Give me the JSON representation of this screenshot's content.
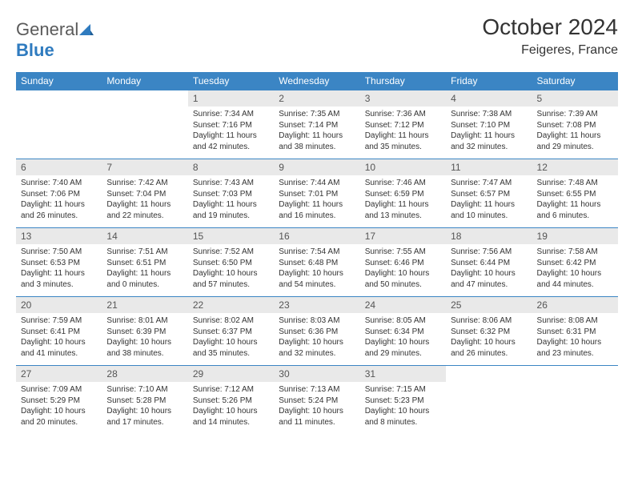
{
  "brand": {
    "name_part1": "General",
    "name_part2": "Blue"
  },
  "title": "October 2024",
  "location": "Feigeres, France",
  "colors": {
    "header_bg": "#3b85c4",
    "header_text": "#ffffff",
    "daynum_bg": "#e9e9e9",
    "rule": "#3b85c4",
    "text": "#333333",
    "logo_accent": "#2f7bbf"
  },
  "day_names": [
    "Sunday",
    "Monday",
    "Tuesday",
    "Wednesday",
    "Thursday",
    "Friday",
    "Saturday"
  ],
  "weeks": [
    [
      {
        "n": "",
        "sr": "",
        "ss": "",
        "dl": ""
      },
      {
        "n": "",
        "sr": "",
        "ss": "",
        "dl": ""
      },
      {
        "n": "1",
        "sr": "7:34 AM",
        "ss": "7:16 PM",
        "dl": "11 hours and 42 minutes."
      },
      {
        "n": "2",
        "sr": "7:35 AM",
        "ss": "7:14 PM",
        "dl": "11 hours and 38 minutes."
      },
      {
        "n": "3",
        "sr": "7:36 AM",
        "ss": "7:12 PM",
        "dl": "11 hours and 35 minutes."
      },
      {
        "n": "4",
        "sr": "7:38 AM",
        "ss": "7:10 PM",
        "dl": "11 hours and 32 minutes."
      },
      {
        "n": "5",
        "sr": "7:39 AM",
        "ss": "7:08 PM",
        "dl": "11 hours and 29 minutes."
      }
    ],
    [
      {
        "n": "6",
        "sr": "7:40 AM",
        "ss": "7:06 PM",
        "dl": "11 hours and 26 minutes."
      },
      {
        "n": "7",
        "sr": "7:42 AM",
        "ss": "7:04 PM",
        "dl": "11 hours and 22 minutes."
      },
      {
        "n": "8",
        "sr": "7:43 AM",
        "ss": "7:03 PM",
        "dl": "11 hours and 19 minutes."
      },
      {
        "n": "9",
        "sr": "7:44 AM",
        "ss": "7:01 PM",
        "dl": "11 hours and 16 minutes."
      },
      {
        "n": "10",
        "sr": "7:46 AM",
        "ss": "6:59 PM",
        "dl": "11 hours and 13 minutes."
      },
      {
        "n": "11",
        "sr": "7:47 AM",
        "ss": "6:57 PM",
        "dl": "11 hours and 10 minutes."
      },
      {
        "n": "12",
        "sr": "7:48 AM",
        "ss": "6:55 PM",
        "dl": "11 hours and 6 minutes."
      }
    ],
    [
      {
        "n": "13",
        "sr": "7:50 AM",
        "ss": "6:53 PM",
        "dl": "11 hours and 3 minutes."
      },
      {
        "n": "14",
        "sr": "7:51 AM",
        "ss": "6:51 PM",
        "dl": "11 hours and 0 minutes."
      },
      {
        "n": "15",
        "sr": "7:52 AM",
        "ss": "6:50 PM",
        "dl": "10 hours and 57 minutes."
      },
      {
        "n": "16",
        "sr": "7:54 AM",
        "ss": "6:48 PM",
        "dl": "10 hours and 54 minutes."
      },
      {
        "n": "17",
        "sr": "7:55 AM",
        "ss": "6:46 PM",
        "dl": "10 hours and 50 minutes."
      },
      {
        "n": "18",
        "sr": "7:56 AM",
        "ss": "6:44 PM",
        "dl": "10 hours and 47 minutes."
      },
      {
        "n": "19",
        "sr": "7:58 AM",
        "ss": "6:42 PM",
        "dl": "10 hours and 44 minutes."
      }
    ],
    [
      {
        "n": "20",
        "sr": "7:59 AM",
        "ss": "6:41 PM",
        "dl": "10 hours and 41 minutes."
      },
      {
        "n": "21",
        "sr": "8:01 AM",
        "ss": "6:39 PM",
        "dl": "10 hours and 38 minutes."
      },
      {
        "n": "22",
        "sr": "8:02 AM",
        "ss": "6:37 PM",
        "dl": "10 hours and 35 minutes."
      },
      {
        "n": "23",
        "sr": "8:03 AM",
        "ss": "6:36 PM",
        "dl": "10 hours and 32 minutes."
      },
      {
        "n": "24",
        "sr": "8:05 AM",
        "ss": "6:34 PM",
        "dl": "10 hours and 29 minutes."
      },
      {
        "n": "25",
        "sr": "8:06 AM",
        "ss": "6:32 PM",
        "dl": "10 hours and 26 minutes."
      },
      {
        "n": "26",
        "sr": "8:08 AM",
        "ss": "6:31 PM",
        "dl": "10 hours and 23 minutes."
      }
    ],
    [
      {
        "n": "27",
        "sr": "7:09 AM",
        "ss": "5:29 PM",
        "dl": "10 hours and 20 minutes."
      },
      {
        "n": "28",
        "sr": "7:10 AM",
        "ss": "5:28 PM",
        "dl": "10 hours and 17 minutes."
      },
      {
        "n": "29",
        "sr": "7:12 AM",
        "ss": "5:26 PM",
        "dl": "10 hours and 14 minutes."
      },
      {
        "n": "30",
        "sr": "7:13 AM",
        "ss": "5:24 PM",
        "dl": "10 hours and 11 minutes."
      },
      {
        "n": "31",
        "sr": "7:15 AM",
        "ss": "5:23 PM",
        "dl": "10 hours and 8 minutes."
      },
      {
        "n": "",
        "sr": "",
        "ss": "",
        "dl": ""
      },
      {
        "n": "",
        "sr": "",
        "ss": "",
        "dl": ""
      }
    ]
  ],
  "labels": {
    "sunrise": "Sunrise:",
    "sunset": "Sunset:",
    "daylight": "Daylight:"
  }
}
